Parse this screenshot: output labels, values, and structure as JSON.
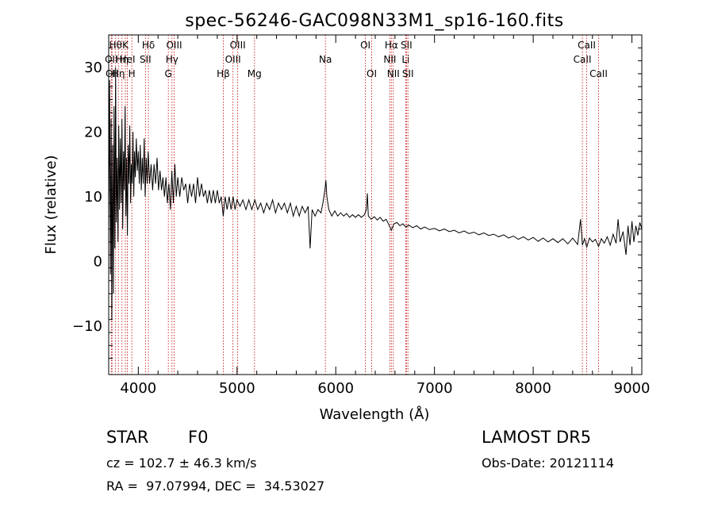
{
  "chart_data": {
    "type": "line",
    "title": "spec-56246-GAC098N33M1_sp16-160.fits",
    "xlabel": "Wavelength (Å)",
    "ylabel": "Flux (relative)",
    "xlim": [
      3700,
      9100
    ],
    "ylim": [
      -17.5,
      35
    ],
    "x_ticks": [
      4000,
      5000,
      6000,
      7000,
      8000,
      9000
    ],
    "x_tick_labels": [
      "4000",
      "5000",
      "6000",
      "7000",
      "8000",
      "9000"
    ],
    "y_ticks": [
      -10,
      0,
      10,
      20,
      30
    ],
    "y_tick_labels": [
      "−10",
      "0",
      "10",
      "20",
      "30"
    ],
    "grid": false,
    "series": [
      {
        "color": "#000000",
        "points": [
          [
            3700,
            5
          ],
          [
            3710,
            28
          ],
          [
            3718,
            -2
          ],
          [
            3725,
            22
          ],
          [
            3732,
            -9
          ],
          [
            3740,
            18
          ],
          [
            3748,
            -5
          ],
          [
            3755,
            24
          ],
          [
            3763,
            2
          ],
          [
            3770,
            30
          ],
          [
            3778,
            6
          ],
          [
            3786,
            16
          ],
          [
            3794,
            3
          ],
          [
            3802,
            21
          ],
          [
            3810,
            8
          ],
          [
            3818,
            19
          ],
          [
            3826,
            9
          ],
          [
            3834,
            22
          ],
          [
            3842,
            5
          ],
          [
            3850,
            17
          ],
          [
            3858,
            11
          ],
          [
            3866,
            24
          ],
          [
            3874,
            7
          ],
          [
            3882,
            16
          ],
          [
            3890,
            4
          ],
          [
            3898,
            18
          ],
          [
            3906,
            12
          ],
          [
            3914,
            21
          ],
          [
            3922,
            9
          ],
          [
            3930,
            15
          ],
          [
            3938,
            12
          ],
          [
            3946,
            20
          ],
          [
            3954,
            10
          ],
          [
            3962,
            17
          ],
          [
            3970,
            13
          ],
          [
            3980,
            19
          ],
          [
            3990,
            14
          ],
          [
            4000,
            17
          ],
          [
            4010,
            12
          ],
          [
            4020,
            18
          ],
          [
            4030,
            11
          ],
          [
            4040,
            16
          ],
          [
            4050,
            12
          ],
          [
            4060,
            19
          ],
          [
            4070,
            10
          ],
          [
            4080,
            16
          ],
          [
            4090,
            12
          ],
          [
            4100,
            17
          ],
          [
            4115,
            12
          ],
          [
            4130,
            15
          ],
          [
            4145,
            11
          ],
          [
            4160,
            15
          ],
          [
            4175,
            12
          ],
          [
            4190,
            16
          ],
          [
            4205,
            11
          ],
          [
            4220,
            14
          ],
          [
            4235,
            11
          ],
          [
            4250,
            13
          ],
          [
            4265,
            10
          ],
          [
            4280,
            13
          ],
          [
            4295,
            9
          ],
          [
            4310,
            12
          ],
          [
            4325,
            8
          ],
          [
            4340,
            14
          ],
          [
            4355,
            9
          ],
          [
            4370,
            15
          ],
          [
            4385,
            10
          ],
          [
            4400,
            13
          ],
          [
            4420,
            10
          ],
          [
            4440,
            13
          ],
          [
            4460,
            11
          ],
          [
            4480,
            12
          ],
          [
            4500,
            9
          ],
          [
            4520,
            12
          ],
          [
            4540,
            10
          ],
          [
            4560,
            12
          ],
          [
            4580,
            9
          ],
          [
            4600,
            13
          ],
          [
            4620,
            10
          ],
          [
            4640,
            12
          ],
          [
            4660,
            10
          ],
          [
            4680,
            11
          ],
          [
            4700,
            9
          ],
          [
            4720,
            11
          ],
          [
            4740,
            9
          ],
          [
            4760,
            11
          ],
          [
            4780,
            9
          ],
          [
            4800,
            11
          ],
          [
            4820,
            9
          ],
          [
            4840,
            10
          ],
          [
            4860,
            7
          ],
          [
            4880,
            10
          ],
          [
            4900,
            8
          ],
          [
            4920,
            10
          ],
          [
            4940,
            8
          ],
          [
            4960,
            10
          ],
          [
            4980,
            8
          ],
          [
            5000,
            9.5
          ],
          [
            5030,
            8.5
          ],
          [
            5060,
            9.5
          ],
          [
            5090,
            8
          ],
          [
            5120,
            9.5
          ],
          [
            5150,
            8
          ],
          [
            5180,
            9.5
          ],
          [
            5210,
            8
          ],
          [
            5240,
            9
          ],
          [
            5270,
            7.5
          ],
          [
            5300,
            9
          ],
          [
            5330,
            8
          ],
          [
            5360,
            9.5
          ],
          [
            5390,
            7.5
          ],
          [
            5420,
            9
          ],
          [
            5450,
            8
          ],
          [
            5480,
            9
          ],
          [
            5510,
            7.5
          ],
          [
            5540,
            9
          ],
          [
            5570,
            7
          ],
          [
            5600,
            8.5
          ],
          [
            5630,
            7
          ],
          [
            5660,
            8.5
          ],
          [
            5690,
            7.5
          ],
          [
            5720,
            8.5
          ],
          [
            5740,
            2
          ],
          [
            5760,
            8
          ],
          [
            5790,
            7
          ],
          [
            5820,
            8
          ],
          [
            5850,
            7.5
          ],
          [
            5870,
            9
          ],
          [
            5890,
            11
          ],
          [
            5900,
            12.5
          ],
          [
            5910,
            10
          ],
          [
            5930,
            8
          ],
          [
            5960,
            7
          ],
          [
            5990,
            7.8
          ],
          [
            6020,
            7
          ],
          [
            6050,
            7.5
          ],
          [
            6080,
            7
          ],
          [
            6110,
            7.4
          ],
          [
            6140,
            6.8
          ],
          [
            6170,
            7.2
          ],
          [
            6200,
            6.8
          ],
          [
            6230,
            7.2
          ],
          [
            6260,
            6.8
          ],
          [
            6290,
            7.2
          ],
          [
            6310,
            8
          ],
          [
            6320,
            10.5
          ],
          [
            6330,
            7
          ],
          [
            6360,
            6.5
          ],
          [
            6390,
            6.9
          ],
          [
            6420,
            6.4
          ],
          [
            6450,
            6.8
          ],
          [
            6480,
            6.2
          ],
          [
            6510,
            6.5
          ],
          [
            6540,
            5.6
          ],
          [
            6563,
            4.8
          ],
          [
            6590,
            5.8
          ],
          [
            6620,
            6
          ],
          [
            6650,
            5.5
          ],
          [
            6680,
            5.8
          ],
          [
            6710,
            5.3
          ],
          [
            6740,
            5.6
          ],
          [
            6780,
            5.2
          ],
          [
            6820,
            5.5
          ],
          [
            6860,
            5
          ],
          [
            6900,
            5.3
          ],
          [
            6950,
            4.9
          ],
          [
            7000,
            5.1
          ],
          [
            7050,
            4.7
          ],
          [
            7100,
            5
          ],
          [
            7150,
            4.6
          ],
          [
            7200,
            4.8
          ],
          [
            7250,
            4.4
          ],
          [
            7300,
            4.7
          ],
          [
            7350,
            4.3
          ],
          [
            7400,
            4.5
          ],
          [
            7450,
            4.1
          ],
          [
            7500,
            4.4
          ],
          [
            7550,
            4
          ],
          [
            7600,
            4.2
          ],
          [
            7650,
            3.8
          ],
          [
            7700,
            4.1
          ],
          [
            7750,
            3.6
          ],
          [
            7800,
            3.9
          ],
          [
            7850,
            3.4
          ],
          [
            7900,
            3.8
          ],
          [
            7950,
            3.3
          ],
          [
            8000,
            3.7
          ],
          [
            8050,
            3.1
          ],
          [
            8100,
            3.6
          ],
          [
            8150,
            3
          ],
          [
            8200,
            3.5
          ],
          [
            8250,
            2.9
          ],
          [
            8300,
            3.5
          ],
          [
            8350,
            2.7
          ],
          [
            8400,
            3.6
          ],
          [
            8450,
            2.6
          ],
          [
            8480,
            6.5
          ],
          [
            8498,
            2.5
          ],
          [
            8520,
            3.5
          ],
          [
            8542,
            2.2
          ],
          [
            8570,
            3.6
          ],
          [
            8600,
            3
          ],
          [
            8630,
            3.4
          ],
          [
            8662,
            2.3
          ],
          [
            8690,
            3.5
          ],
          [
            8720,
            2.8
          ],
          [
            8750,
            3.8
          ],
          [
            8780,
            2.5
          ],
          [
            8810,
            4.2
          ],
          [
            8840,
            2.8
          ],
          [
            8860,
            6.5
          ],
          [
            8880,
            3
          ],
          [
            8910,
            4.6
          ],
          [
            8940,
            1
          ],
          [
            8960,
            5.5
          ],
          [
            8980,
            2.5
          ],
          [
            9000,
            6.2
          ],
          [
            9020,
            3
          ],
          [
            9040,
            5.5
          ],
          [
            9060,
            4
          ],
          [
            9080,
            6
          ],
          [
            9100,
            5
          ]
        ]
      }
    ],
    "lines": [
      {
        "x": 3727,
        "label": "OII",
        "row": 2
      },
      {
        "x": 3734,
        "label": "OII",
        "row": 3
      },
      {
        "x": 3770,
        "label": "Hθ",
        "row": 1
      },
      {
        "x": 3798,
        "label": "Hη",
        "row": 3
      },
      {
        "x": 3835,
        "label": "Hη",
        "row": 2
      },
      {
        "x": 3869,
        "label": "K",
        "row": 1
      },
      {
        "x": 3889,
        "label": "HeI",
        "row": 2
      },
      {
        "x": 3934,
        "label": "H",
        "row": 3
      },
      {
        "x": 4072,
        "label": "SII",
        "row": 2
      },
      {
        "x": 4102,
        "label": "Hδ",
        "row": 1
      },
      {
        "x": 4304,
        "label": "G",
        "row": 3
      },
      {
        "x": 4341,
        "label": "Hγ",
        "row": 2
      },
      {
        "x": 4363,
        "label": "OIII",
        "row": 1
      },
      {
        "x": 4861,
        "label": "Hβ",
        "row": 3
      },
      {
        "x": 4959,
        "label": "OIII",
        "row": 2
      },
      {
        "x": 5007,
        "label": "OIII",
        "row": 1
      },
      {
        "x": 5177,
        "label": "Mg",
        "row": 3
      },
      {
        "x": 5895,
        "label": "Na",
        "row": 2
      },
      {
        "x": 6300,
        "label": "OI",
        "row": 1
      },
      {
        "x": 6364,
        "label": "OI",
        "row": 3
      },
      {
        "x": 6548,
        "label": "NII",
        "row": 2
      },
      {
        "x": 6563,
        "label": "Hα",
        "row": 1
      },
      {
        "x": 6583,
        "label": "NII",
        "row": 3
      },
      {
        "x": 6708,
        "label": "Li",
        "row": 2
      },
      {
        "x": 6716,
        "label": "SII",
        "row": 1
      },
      {
        "x": 6731,
        "label": "SII",
        "row": 3
      },
      {
        "x": 8498,
        "label": "CaII",
        "row": 2
      },
      {
        "x": 8542,
        "label": "CaII",
        "row": 1
      },
      {
        "x": 8662,
        "label": "CaII",
        "row": 3
      }
    ]
  },
  "footer": {
    "class_label": "STAR",
    "subclass": "F0",
    "survey": "LAMOST DR5",
    "cz": "cz = 102.7 ± 46.3 km/s",
    "obs_date": "Obs-Date: 20121114",
    "coords": "RA =  97.07994, DEC =  34.53027"
  }
}
